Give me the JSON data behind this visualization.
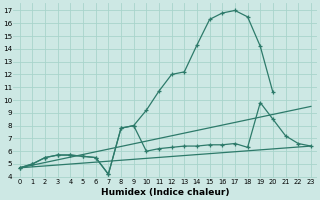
{
  "xlabel": "Humidex (Indice chaleur)",
  "bg_color": "#cde8e4",
  "grid_color": "#a8d4cc",
  "line_color": "#2d7a6a",
  "xlim": [
    -0.5,
    23.5
  ],
  "ylim": [
    3.9,
    17.6
  ],
  "xticks": [
    0,
    1,
    2,
    3,
    4,
    5,
    6,
    7,
    8,
    9,
    10,
    11,
    12,
    13,
    14,
    15,
    16,
    17,
    18,
    19,
    20,
    21,
    22,
    23
  ],
  "yticks": [
    4,
    5,
    6,
    7,
    8,
    9,
    10,
    11,
    12,
    13,
    14,
    15,
    16,
    17
  ],
  "curve1_x": [
    0,
    1,
    2,
    3,
    4,
    5,
    6,
    7,
    8,
    9,
    10,
    11,
    12,
    13,
    14,
    15,
    16,
    17,
    18,
    19,
    20
  ],
  "curve1_y": [
    4.7,
    5.0,
    5.5,
    5.7,
    5.7,
    5.6,
    5.5,
    4.2,
    7.8,
    8.0,
    9.2,
    10.7,
    12.0,
    12.2,
    14.3,
    16.3,
    16.8,
    17.0,
    16.5,
    14.2,
    10.6
  ],
  "curve2_x": [
    0,
    1,
    2,
    3,
    4,
    5,
    6,
    7,
    8,
    9,
    10,
    11,
    12,
    13,
    14,
    15,
    16,
    17,
    18,
    19,
    20,
    21,
    22,
    23
  ],
  "curve2_y": [
    4.7,
    5.0,
    5.5,
    5.7,
    5.7,
    5.6,
    5.5,
    4.2,
    7.8,
    8.0,
    6.0,
    6.2,
    6.3,
    6.4,
    6.4,
    6.5,
    6.5,
    6.6,
    6.3,
    9.8,
    8.5,
    7.2,
    6.6,
    6.4
  ],
  "line1_x": [
    0,
    23
  ],
  "line1_y": [
    4.7,
    6.4
  ],
  "line2_x": [
    0,
    23
  ],
  "line2_y": [
    4.7,
    9.5
  ],
  "xlabel_fontsize": 6.5,
  "tick_fontsize_x": 4.8,
  "tick_fontsize_y": 5.2
}
